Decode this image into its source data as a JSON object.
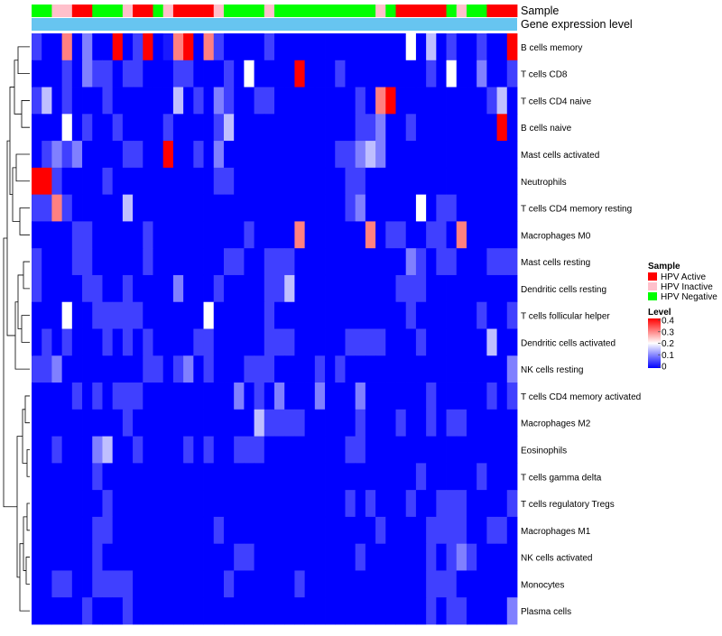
{
  "chart_data": {
    "type": "heatmap",
    "title": "",
    "annotation_tracks": [
      "Sample",
      "Gene expression level"
    ],
    "rows": [
      "B cells memory",
      "T cells CD8",
      "T cells CD4 naive",
      "B cells naive",
      "Mast cells activated",
      "Neutrophils",
      "T cells CD4 memory resting",
      "Macrophages M0",
      "Mast cells resting",
      "Dendritic cells resting",
      "T cells follicular helper",
      "Dendritic cells activated",
      "NK cells resting",
      "T cells CD4 memory activated",
      "Macrophages M2",
      "Eosinophils",
      "T cells gamma delta",
      "T cells regulatory  Tregs",
      "Macrophages M1",
      "NK cells activated",
      "Monocytes",
      "Plasma cells"
    ],
    "sample_groups": [
      "HPV Negative",
      "HPV Negative",
      "HPV Inactive",
      "HPV Inactive",
      "HPV Active",
      "HPV Active",
      "HPV Negative",
      "HPV Negative",
      "HPV Negative",
      "HPV Inactive",
      "HPV Active",
      "HPV Active",
      "HPV Negative",
      "HPV Inactive",
      "HPV Active",
      "HPV Active",
      "HPV Active",
      "HPV Active",
      "HPV Inactive",
      "HPV Negative",
      "HPV Negative",
      "HPV Negative",
      "HPV Negative",
      "HPV Inactive",
      "HPV Negative",
      "HPV Negative",
      "HPV Negative",
      "HPV Negative",
      "HPV Negative",
      "HPV Negative",
      "HPV Negative",
      "HPV Negative",
      "HPV Negative",
      "HPV Negative",
      "HPV Inactive",
      "HPV Negative",
      "HPV Active",
      "HPV Active",
      "HPV Active",
      "HPV Active",
      "HPV Active",
      "HPV Negative",
      "HPV Inactive",
      "HPV Negative",
      "HPV Negative",
      "HPV Active",
      "HPV Active",
      "HPV Active"
    ],
    "values": [
      [
        0.05,
        0.0,
        0.0,
        0.3,
        0.0,
        0.1,
        0.0,
        0.0,
        0.4,
        0.0,
        0.05,
        0.4,
        0.0,
        0.02,
        0.3,
        0.4,
        0.0,
        0.3,
        0.05,
        0.0,
        0.0,
        0.0,
        0.0,
        0.05,
        0.0,
        0.0,
        0.0,
        0.0,
        0.0,
        0.0,
        0.0,
        0.0,
        0.0,
        0.0,
        0.0,
        0.0,
        0.0,
        0.2,
        0.0,
        0.15,
        0.0,
        0.05,
        0.0,
        0.0,
        0.05,
        0.0,
        0.0,
        0.4
      ],
      [
        0.0,
        0.0,
        0.0,
        0.05,
        0.0,
        0.1,
        0.05,
        0.05,
        0.0,
        0.05,
        0.05,
        0.0,
        0.0,
        0.0,
        0.05,
        0.05,
        0.0,
        0.0,
        0.0,
        0.05,
        0.0,
        0.2,
        0.0,
        0.0,
        0.0,
        0.0,
        0.4,
        0.0,
        0.0,
        0.0,
        0.05,
        0.0,
        0.0,
        0.0,
        0.0,
        0.0,
        0.0,
        0.0,
        0.0,
        0.05,
        0.0,
        0.2,
        0.0,
        0.0,
        0.1,
        0.0,
        0.0,
        0.05
      ],
      [
        0.05,
        0.15,
        0.0,
        0.05,
        0.0,
        0.0,
        0.0,
        0.05,
        0.0,
        0.0,
        0.0,
        0.0,
        0.0,
        0.0,
        0.15,
        0.0,
        0.05,
        0.0,
        0.1,
        0.05,
        0.0,
        0.0,
        0.05,
        0.05,
        0.0,
        0.0,
        0.0,
        0.0,
        0.0,
        0.0,
        0.0,
        0.0,
        0.05,
        0.0,
        0.3,
        0.4,
        0.0,
        0.0,
        0.0,
        0.0,
        0.0,
        0.0,
        0.0,
        0.0,
        0.0,
        0.05,
        0.15,
        0.0
      ],
      [
        0.0,
        0.0,
        0.0,
        0.2,
        0.0,
        0.05,
        0.0,
        0.0,
        0.05,
        0.0,
        0.0,
        0.0,
        0.0,
        0.05,
        0.0,
        0.0,
        0.0,
        0.0,
        0.05,
        0.15,
        0.0,
        0.0,
        0.0,
        0.0,
        0.0,
        0.0,
        0.0,
        0.0,
        0.0,
        0.0,
        0.0,
        0.0,
        0.05,
        0.05,
        0.1,
        0.0,
        0.0,
        0.05,
        0.0,
        0.0,
        0.0,
        0.0,
        0.0,
        0.0,
        0.0,
        0.0,
        0.4,
        0.0
      ],
      [
        0.0,
        0.05,
        0.1,
        0.05,
        0.1,
        0.0,
        0.0,
        0.0,
        0.0,
        0.05,
        0.05,
        0.0,
        0.0,
        0.4,
        0.0,
        0.0,
        0.05,
        0.0,
        0.1,
        0.0,
        0.0,
        0.0,
        0.0,
        0.0,
        0.0,
        0.0,
        0.0,
        0.0,
        0.0,
        0.0,
        0.05,
        0.05,
        0.1,
        0.15,
        0.1,
        0.0,
        0.0,
        0.0,
        0.0,
        0.0,
        0.0,
        0.0,
        0.0,
        0.0,
        0.0,
        0.0,
        0.0,
        0.0
      ],
      [
        0.4,
        0.4,
        0.05,
        0.0,
        0.0,
        0.0,
        0.0,
        0.05,
        0.0,
        0.0,
        0.0,
        0.0,
        0.0,
        0.0,
        0.0,
        0.0,
        0.0,
        0.0,
        0.05,
        0.05,
        0.0,
        0.0,
        0.0,
        0.0,
        0.0,
        0.0,
        0.0,
        0.0,
        0.0,
        0.0,
        0.0,
        0.05,
        0.05,
        0.0,
        0.0,
        0.0,
        0.0,
        0.0,
        0.0,
        0.0,
        0.0,
        0.0,
        0.0,
        0.0,
        0.0,
        0.0,
        0.0,
        0.0
      ],
      [
        0.05,
        0.05,
        0.3,
        0.05,
        0.0,
        0.0,
        0.0,
        0.0,
        0.0,
        0.15,
        0.0,
        0.0,
        0.0,
        0.0,
        0.0,
        0.0,
        0.0,
        0.0,
        0.0,
        0.0,
        0.0,
        0.0,
        0.0,
        0.0,
        0.0,
        0.0,
        0.0,
        0.0,
        0.0,
        0.0,
        0.0,
        0.05,
        0.1,
        0.0,
        0.0,
        0.0,
        0.0,
        0.0,
        0.2,
        0.0,
        0.05,
        0.05,
        0.0,
        0.0,
        0.0,
        0.0,
        0.0,
        0.0
      ],
      [
        0.0,
        0.0,
        0.0,
        0.0,
        0.05,
        0.05,
        0.0,
        0.0,
        0.0,
        0.0,
        0.0,
        0.05,
        0.0,
        0.0,
        0.0,
        0.0,
        0.0,
        0.0,
        0.0,
        0.0,
        0.0,
        0.05,
        0.0,
        0.0,
        0.0,
        0.0,
        0.3,
        0.0,
        0.0,
        0.0,
        0.0,
        0.0,
        0.0,
        0.3,
        0.0,
        0.05,
        0.05,
        0.0,
        0.0,
        0.05,
        0.05,
        0.0,
        0.3,
        0.0,
        0.0,
        0.0,
        0.0,
        0.0
      ],
      [
        0.05,
        0.0,
        0.0,
        0.0,
        0.05,
        0.05,
        0.0,
        0.0,
        0.0,
        0.0,
        0.0,
        0.05,
        0.0,
        0.0,
        0.0,
        0.0,
        0.0,
        0.0,
        0.0,
        0.05,
        0.05,
        0.0,
        0.0,
        0.05,
        0.05,
        0.05,
        0.0,
        0.0,
        0.0,
        0.0,
        0.0,
        0.0,
        0.0,
        0.0,
        0.0,
        0.0,
        0.0,
        0.1,
        0.05,
        0.0,
        0.05,
        0.05,
        0.0,
        0.0,
        0.0,
        0.05,
        0.05,
        0.05
      ],
      [
        0.05,
        0.0,
        0.0,
        0.0,
        0.0,
        0.05,
        0.05,
        0.0,
        0.0,
        0.05,
        0.0,
        0.0,
        0.0,
        0.0,
        0.1,
        0.0,
        0.0,
        0.0,
        0.05,
        0.0,
        0.0,
        0.0,
        0.0,
        0.05,
        0.05,
        0.15,
        0.0,
        0.0,
        0.0,
        0.0,
        0.0,
        0.0,
        0.0,
        0.0,
        0.0,
        0.0,
        0.05,
        0.05,
        0.05,
        0.0,
        0.0,
        0.0,
        0.0,
        0.0,
        0.0,
        0.0,
        0.0,
        0.0
      ],
      [
        0.0,
        0.0,
        0.0,
        0.2,
        0.0,
        0.0,
        0.05,
        0.05,
        0.05,
        0.05,
        0.05,
        0.0,
        0.0,
        0.0,
        0.0,
        0.0,
        0.0,
        0.2,
        0.0,
        0.0,
        0.0,
        0.0,
        0.0,
        0.05,
        0.0,
        0.0,
        0.0,
        0.0,
        0.0,
        0.0,
        0.0,
        0.0,
        0.0,
        0.0,
        0.0,
        0.0,
        0.0,
        0.05,
        0.0,
        0.0,
        0.0,
        0.0,
        0.0,
        0.0,
        0.05,
        0.0,
        0.0,
        0.05
      ],
      [
        0.0,
        0.05,
        0.0,
        0.05,
        0.0,
        0.0,
        0.0,
        0.05,
        0.0,
        0.05,
        0.0,
        0.05,
        0.0,
        0.0,
        0.0,
        0.0,
        0.05,
        0.05,
        0.0,
        0.0,
        0.0,
        0.0,
        0.0,
        0.05,
        0.05,
        0.05,
        0.0,
        0.0,
        0.0,
        0.0,
        0.0,
        0.05,
        0.05,
        0.05,
        0.05,
        0.0,
        0.0,
        0.0,
        0.05,
        0.0,
        0.0,
        0.0,
        0.0,
        0.0,
        0.0,
        0.15,
        0.0,
        0.0
      ],
      [
        0.05,
        0.05,
        0.1,
        0.0,
        0.0,
        0.0,
        0.0,
        0.0,
        0.0,
        0.0,
        0.0,
        0.05,
        0.05,
        0.0,
        0.05,
        0.1,
        0.0,
        0.05,
        0.0,
        0.0,
        0.0,
        0.05,
        0.05,
        0.05,
        0.0,
        0.0,
        0.0,
        0.0,
        0.05,
        0.0,
        0.05,
        0.0,
        0.0,
        0.0,
        0.0,
        0.0,
        0.0,
        0.0,
        0.0,
        0.0,
        0.0,
        0.0,
        0.0,
        0.0,
        0.0,
        0.0,
        0.0,
        0.1
      ],
      [
        0.0,
        0.0,
        0.0,
        0.0,
        0.05,
        0.0,
        0.05,
        0.0,
        0.05,
        0.05,
        0.05,
        0.0,
        0.0,
        0.0,
        0.0,
        0.0,
        0.0,
        0.0,
        0.0,
        0.0,
        0.1,
        0.0,
        0.05,
        0.0,
        0.1,
        0.0,
        0.0,
        0.0,
        0.1,
        0.0,
        0.0,
        0.0,
        0.1,
        0.0,
        0.0,
        0.0,
        0.0,
        0.0,
        0.0,
        0.05,
        0.0,
        0.0,
        0.0,
        0.0,
        0.0,
        0.05,
        0.0,
        0.05
      ],
      [
        0.0,
        0.0,
        0.0,
        0.0,
        0.0,
        0.0,
        0.0,
        0.0,
        0.0,
        0.05,
        0.0,
        0.0,
        0.0,
        0.0,
        0.0,
        0.0,
        0.0,
        0.0,
        0.0,
        0.0,
        0.0,
        0.0,
        0.15,
        0.05,
        0.05,
        0.05,
        0.05,
        0.0,
        0.0,
        0.0,
        0.0,
        0.0,
        0.05,
        0.0,
        0.0,
        0.0,
        0.05,
        0.0,
        0.0,
        0.05,
        0.0,
        0.05,
        0.05,
        0.0,
        0.0,
        0.0,
        0.0,
        0.0
      ],
      [
        0.0,
        0.0,
        0.05,
        0.0,
        0.0,
        0.0,
        0.1,
        0.15,
        0.0,
        0.0,
        0.05,
        0.0,
        0.0,
        0.0,
        0.0,
        0.05,
        0.0,
        0.05,
        0.0,
        0.0,
        0.05,
        0.05,
        0.05,
        0.0,
        0.0,
        0.0,
        0.0,
        0.0,
        0.0,
        0.0,
        0.0,
        0.05,
        0.05,
        0.0,
        0.0,
        0.0,
        0.0,
        0.0,
        0.0,
        0.0,
        0.0,
        0.0,
        0.0,
        0.0,
        0.0,
        0.0,
        0.0,
        0.0
      ],
      [
        0.0,
        0.0,
        0.0,
        0.0,
        0.0,
        0.0,
        0.05,
        0.0,
        0.0,
        0.0,
        0.0,
        0.0,
        0.0,
        0.0,
        0.0,
        0.0,
        0.0,
        0.0,
        0.0,
        0.0,
        0.0,
        0.0,
        0.0,
        0.0,
        0.0,
        0.0,
        0.0,
        0.0,
        0.0,
        0.0,
        0.0,
        0.0,
        0.0,
        0.0,
        0.0,
        0.0,
        0.0,
        0.0,
        0.05,
        0.0,
        0.0,
        0.0,
        0.0,
        0.0,
        0.05,
        0.0,
        0.0,
        0.0
      ],
      [
        0.0,
        0.0,
        0.0,
        0.0,
        0.0,
        0.0,
        0.0,
        0.05,
        0.0,
        0.0,
        0.0,
        0.0,
        0.0,
        0.0,
        0.0,
        0.0,
        0.0,
        0.0,
        0.0,
        0.0,
        0.0,
        0.0,
        0.0,
        0.0,
        0.0,
        0.0,
        0.0,
        0.0,
        0.0,
        0.0,
        0.0,
        0.05,
        0.0,
        0.05,
        0.0,
        0.0,
        0.0,
        0.05,
        0.0,
        0.0,
        0.05,
        0.05,
        0.05,
        0.0,
        0.0,
        0.0,
        0.0,
        0.05
      ],
      [
        0.0,
        0.0,
        0.0,
        0.0,
        0.0,
        0.0,
        0.05,
        0.05,
        0.0,
        0.0,
        0.0,
        0.0,
        0.0,
        0.0,
        0.0,
        0.0,
        0.0,
        0.0,
        0.05,
        0.0,
        0.0,
        0.0,
        0.0,
        0.0,
        0.0,
        0.0,
        0.0,
        0.0,
        0.0,
        0.0,
        0.0,
        0.0,
        0.0,
        0.0,
        0.05,
        0.0,
        0.0,
        0.0,
        0.0,
        0.05,
        0.05,
        0.05,
        0.05,
        0.0,
        0.0,
        0.05,
        0.05,
        0.0
      ],
      [
        0.0,
        0.0,
        0.0,
        0.0,
        0.0,
        0.0,
        0.05,
        0.0,
        0.0,
        0.0,
        0.0,
        0.0,
        0.0,
        0.0,
        0.0,
        0.0,
        0.0,
        0.0,
        0.0,
        0.0,
        0.05,
        0.05,
        0.0,
        0.0,
        0.0,
        0.0,
        0.0,
        0.0,
        0.0,
        0.0,
        0.0,
        0.0,
        0.05,
        0.0,
        0.0,
        0.0,
        0.0,
        0.0,
        0.0,
        0.05,
        0.0,
        0.05,
        0.1,
        0.05,
        0.0,
        0.0,
        0.0,
        0.0
      ],
      [
        0.0,
        0.0,
        0.05,
        0.05,
        0.0,
        0.0,
        0.05,
        0.05,
        0.05,
        0.05,
        0.0,
        0.0,
        0.0,
        0.0,
        0.0,
        0.0,
        0.0,
        0.0,
        0.0,
        0.05,
        0.0,
        0.0,
        0.0,
        0.0,
        0.0,
        0.0,
        0.05,
        0.0,
        0.0,
        0.0,
        0.0,
        0.0,
        0.0,
        0.0,
        0.0,
        0.0,
        0.0,
        0.0,
        0.0,
        0.05,
        0.05,
        0.05,
        0.0,
        0.0,
        0.0,
        0.0,
        0.0,
        0.0
      ],
      [
        0.0,
        0.0,
        0.0,
        0.0,
        0.0,
        0.05,
        0.0,
        0.0,
        0.0,
        0.05,
        0.0,
        0.0,
        0.0,
        0.0,
        0.0,
        0.0,
        0.0,
        0.0,
        0.0,
        0.0,
        0.0,
        0.0,
        0.0,
        0.0,
        0.0,
        0.0,
        0.0,
        0.0,
        0.0,
        0.0,
        0.0,
        0.0,
        0.0,
        0.0,
        0.0,
        0.0,
        0.0,
        0.0,
        0.0,
        0.05,
        0.0,
        0.05,
        0.05,
        0.0,
        0.0,
        0.0,
        0.0,
        0.1
      ]
    ],
    "expression_track_color": "#67c5f0",
    "legend": {
      "sample_title": "Sample",
      "sample_entries": [
        {
          "label": "HPV Active",
          "color": "#ff0000"
        },
        {
          "label": "HPV Inactive",
          "color": "#ffc0cb"
        },
        {
          "label": "HPV Negative",
          "color": "#00ff00"
        }
      ],
      "level_title": "Level",
      "level_ticks": [
        {
          "value": 0.4,
          "label": "0.4"
        },
        {
          "value": 0.3,
          "label": "0.3"
        },
        {
          "value": 0.2,
          "label": "0.2"
        },
        {
          "value": 0.1,
          "label": "0.1"
        },
        {
          "value": 0,
          "label": "0"
        }
      ],
      "level_range": [
        0,
        0.4
      ],
      "placement": "right"
    },
    "color_scale": {
      "low": "#0000ff",
      "mid": "#ffffff",
      "high": "#ff0000",
      "domain": [
        0,
        0.2,
        0.4
      ]
    }
  }
}
